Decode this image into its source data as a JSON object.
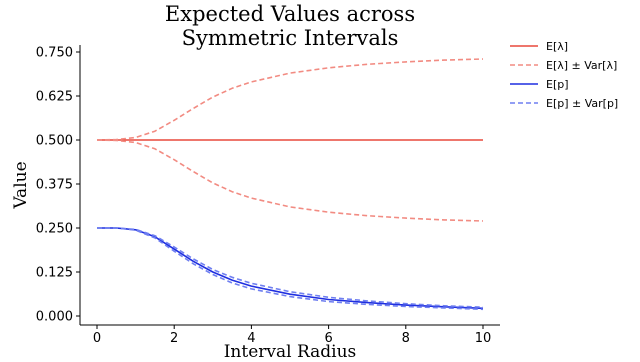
{
  "chart_data": {
    "type": "line",
    "title": "Expected Values across\nSymmetric Intervals",
    "xlabel": "Interval Radius",
    "ylabel": "Value",
    "xlim": [
      0,
      10
    ],
    "ylim": [
      0.0,
      0.75
    ],
    "xticks": [
      0,
      2,
      4,
      6,
      8,
      10
    ],
    "yticks": [
      0.0,
      0.125,
      0.25,
      0.375,
      0.5,
      0.625,
      0.75
    ],
    "xtick_labels": [
      "0",
      "2",
      "4",
      "6",
      "8",
      "10"
    ],
    "ytick_labels": [
      "0.000",
      "0.125",
      "0.250",
      "0.375",
      "0.500",
      "0.625",
      "0.750"
    ],
    "grid": false,
    "legend_position": "outside-top-right",
    "series": [
      {
        "name": "E[λ]",
        "color": "#e8483b",
        "style": "solid",
        "x": [
          0,
          0.5,
          1,
          1.5,
          2,
          2.5,
          3,
          3.5,
          4,
          5,
          6,
          7,
          8,
          9,
          10
        ],
        "values": [
          0.5,
          0.5,
          0.5,
          0.5,
          0.5,
          0.5,
          0.5,
          0.5,
          0.5,
          0.5,
          0.5,
          0.5,
          0.5,
          0.5,
          0.5
        ]
      },
      {
        "name": "E[λ] ± Var[λ]",
        "color": "#f28b82",
        "style": "dashed",
        "x": [
          0,
          0.5,
          1,
          1.5,
          2,
          2.5,
          3,
          3.5,
          4,
          5,
          6,
          7,
          8,
          9,
          10
        ],
        "values": [
          0.5,
          0.501,
          0.507,
          0.525,
          0.556,
          0.59,
          0.622,
          0.647,
          0.665,
          0.69,
          0.705,
          0.715,
          0.722,
          0.727,
          0.73
        ]
      },
      {
        "name": "",
        "color": "#f28b82",
        "style": "dashed",
        "x": [
          0,
          0.5,
          1,
          1.5,
          2,
          2.5,
          3,
          3.5,
          4,
          5,
          6,
          7,
          8,
          9,
          10
        ],
        "values": [
          0.5,
          0.499,
          0.493,
          0.475,
          0.444,
          0.41,
          0.378,
          0.353,
          0.335,
          0.31,
          0.295,
          0.285,
          0.278,
          0.273,
          0.27
        ]
      },
      {
        "name": "E[p]",
        "color": "#1f2fe0",
        "style": "solid",
        "x": [
          0,
          0.5,
          1,
          1.5,
          2,
          2.5,
          3,
          3.5,
          4,
          5,
          6,
          7,
          8,
          9,
          10
        ],
        "values": [
          0.25,
          0.25,
          0.245,
          0.225,
          0.19,
          0.155,
          0.125,
          0.102,
          0.085,
          0.062,
          0.047,
          0.038,
          0.031,
          0.026,
          0.022
        ]
      },
      {
        "name": "E[p] ± Var[p]",
        "color": "#6f7ff0",
        "style": "dashed",
        "x": [
          0,
          0.5,
          1,
          1.5,
          2,
          2.5,
          3,
          3.5,
          4,
          5,
          6,
          7,
          8,
          9,
          10
        ],
        "values": [
          0.25,
          0.25,
          0.246,
          0.228,
          0.196,
          0.162,
          0.132,
          0.11,
          0.093,
          0.069,
          0.053,
          0.043,
          0.035,
          0.029,
          0.025
        ]
      },
      {
        "name": "",
        "color": "#6f7ff0",
        "style": "dashed",
        "x": [
          0,
          0.5,
          1,
          1.5,
          2,
          2.5,
          3,
          3.5,
          4,
          5,
          6,
          7,
          8,
          9,
          10
        ],
        "values": [
          0.25,
          0.25,
          0.244,
          0.222,
          0.184,
          0.148,
          0.118,
          0.094,
          0.077,
          0.055,
          0.041,
          0.033,
          0.027,
          0.023,
          0.019
        ]
      }
    ]
  }
}
